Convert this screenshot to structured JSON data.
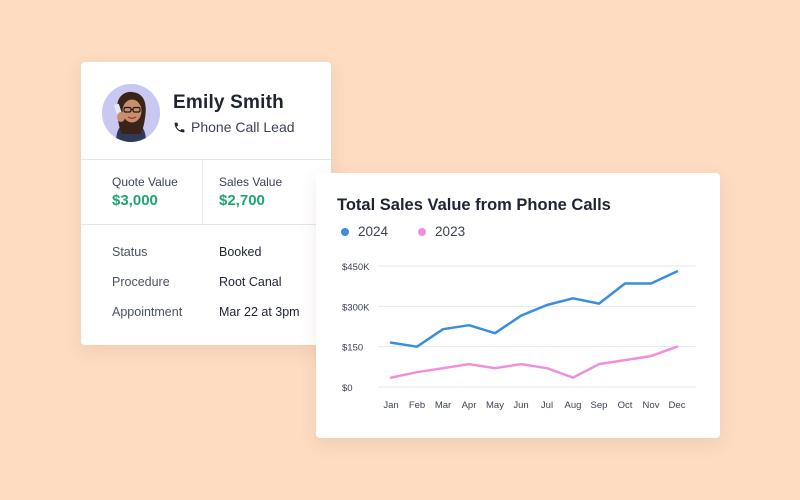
{
  "lead": {
    "name": "Emily Smith",
    "type_label": "Phone Call Lead",
    "metrics": [
      {
        "label": "Quote Value",
        "value": "$3,000"
      },
      {
        "label": "Sales Value",
        "value": "$2,700"
      }
    ],
    "details": [
      {
        "label": "Status",
        "value": "Booked"
      },
      {
        "label": "Procedure",
        "value": "Root Canal"
      },
      {
        "label": "Appointment",
        "value": "Mar 22 at 3pm"
      }
    ],
    "accent_color": "#1ea672"
  },
  "chart_data": {
    "type": "line",
    "title": "Total Sales Value from Phone Calls",
    "categories": [
      "Jan",
      "Feb",
      "Mar",
      "Apr",
      "May",
      "Jun",
      "Jul",
      "Aug",
      "Sep",
      "Oct",
      "Nov",
      "Dec"
    ],
    "y_ticks": [
      {
        "value": 0,
        "label": "$0"
      },
      {
        "value": 150,
        "label": "$150"
      },
      {
        "value": 300,
        "label": "$300K"
      },
      {
        "value": 450,
        "label": "$450K"
      }
    ],
    "ylim": [
      0,
      450
    ],
    "grid": true,
    "legend_position": "top-left",
    "series": [
      {
        "name": "2024",
        "color": "#3a8ddf",
        "values": [
          165,
          150,
          215,
          230,
          200,
          265,
          305,
          330,
          310,
          385,
          385,
          430
        ]
      },
      {
        "name": "2023",
        "color": "#f18fdc",
        "values": [
          35,
          55,
          70,
          85,
          70,
          85,
          70,
          35,
          85,
          100,
          115,
          150
        ]
      }
    ]
  }
}
